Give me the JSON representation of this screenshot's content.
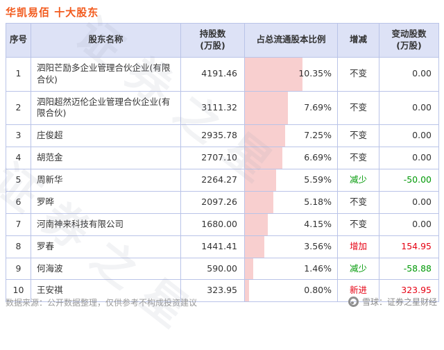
{
  "title": "华凯易佰 十大股东",
  "chart_data": {
    "type": "table",
    "title": "华凯易佰 十大股东",
    "columns": [
      "序号",
      "股东名称",
      "持股数\n(万股)",
      "占总流通股本比例",
      "增减",
      "变动股数\n(万股)"
    ],
    "bar_column": "占总流通股本比例",
    "bar_range": [
      0,
      10.35
    ],
    "rows": [
      {
        "no": "1",
        "name": "泗阳芒励多企业管理合伙企业(有限合伙)",
        "shares": "4191.46",
        "pct": "10.35%",
        "pct_value": 10.35,
        "change": "不变",
        "change_type": "flat",
        "delta": "0.00"
      },
      {
        "no": "2",
        "name": "泗阳超然迈伦企业管理合伙企业(有限合伙)",
        "shares": "3111.32",
        "pct": "7.69%",
        "pct_value": 7.69,
        "change": "不变",
        "change_type": "flat",
        "delta": "0.00"
      },
      {
        "no": "3",
        "name": "庄俊超",
        "shares": "2935.78",
        "pct": "7.25%",
        "pct_value": 7.25,
        "change": "不变",
        "change_type": "flat",
        "delta": "0.00"
      },
      {
        "no": "4",
        "name": "胡范金",
        "shares": "2707.10",
        "pct": "6.69%",
        "pct_value": 6.69,
        "change": "不变",
        "change_type": "flat",
        "delta": "0.00"
      },
      {
        "no": "5",
        "name": "周新华",
        "shares": "2264.27",
        "pct": "5.59%",
        "pct_value": 5.59,
        "change": "减少",
        "change_type": "down",
        "delta": "-50.00"
      },
      {
        "no": "6",
        "name": "罗晔",
        "shares": "2097.26",
        "pct": "5.18%",
        "pct_value": 5.18,
        "change": "不变",
        "change_type": "flat",
        "delta": "0.00"
      },
      {
        "no": "7",
        "name": "河南神来科技有限公司",
        "shares": "1680.00",
        "pct": "4.15%",
        "pct_value": 4.15,
        "change": "不变",
        "change_type": "flat",
        "delta": "0.00"
      },
      {
        "no": "8",
        "name": "罗春",
        "shares": "1441.41",
        "pct": "3.56%",
        "pct_value": 3.56,
        "change": "增加",
        "change_type": "up",
        "delta": "154.95"
      },
      {
        "no": "9",
        "name": "何海波",
        "shares": "590.00",
        "pct": "1.46%",
        "pct_value": 1.46,
        "change": "减少",
        "change_type": "down",
        "delta": "-58.88"
      },
      {
        "no": "10",
        "name": "王安祺",
        "shares": "323.95",
        "pct": "0.80%",
        "pct_value": 0.8,
        "change": "新进",
        "change_type": "new",
        "delta": "323.95"
      }
    ]
  },
  "watermark": "证券之星",
  "footer": {
    "source": "数据来源：公开数据整理，仅供参考不构成投资建议",
    "brand": "雪球：证券之星财经"
  },
  "colors": {
    "title": "#f25a1d",
    "header_bg": "#dde2f6",
    "border": "#b9c3e8",
    "bar": "#f8cfcf",
    "flat": "#333333",
    "down": "#009906",
    "up": "#e60012",
    "new": "#e60012"
  }
}
